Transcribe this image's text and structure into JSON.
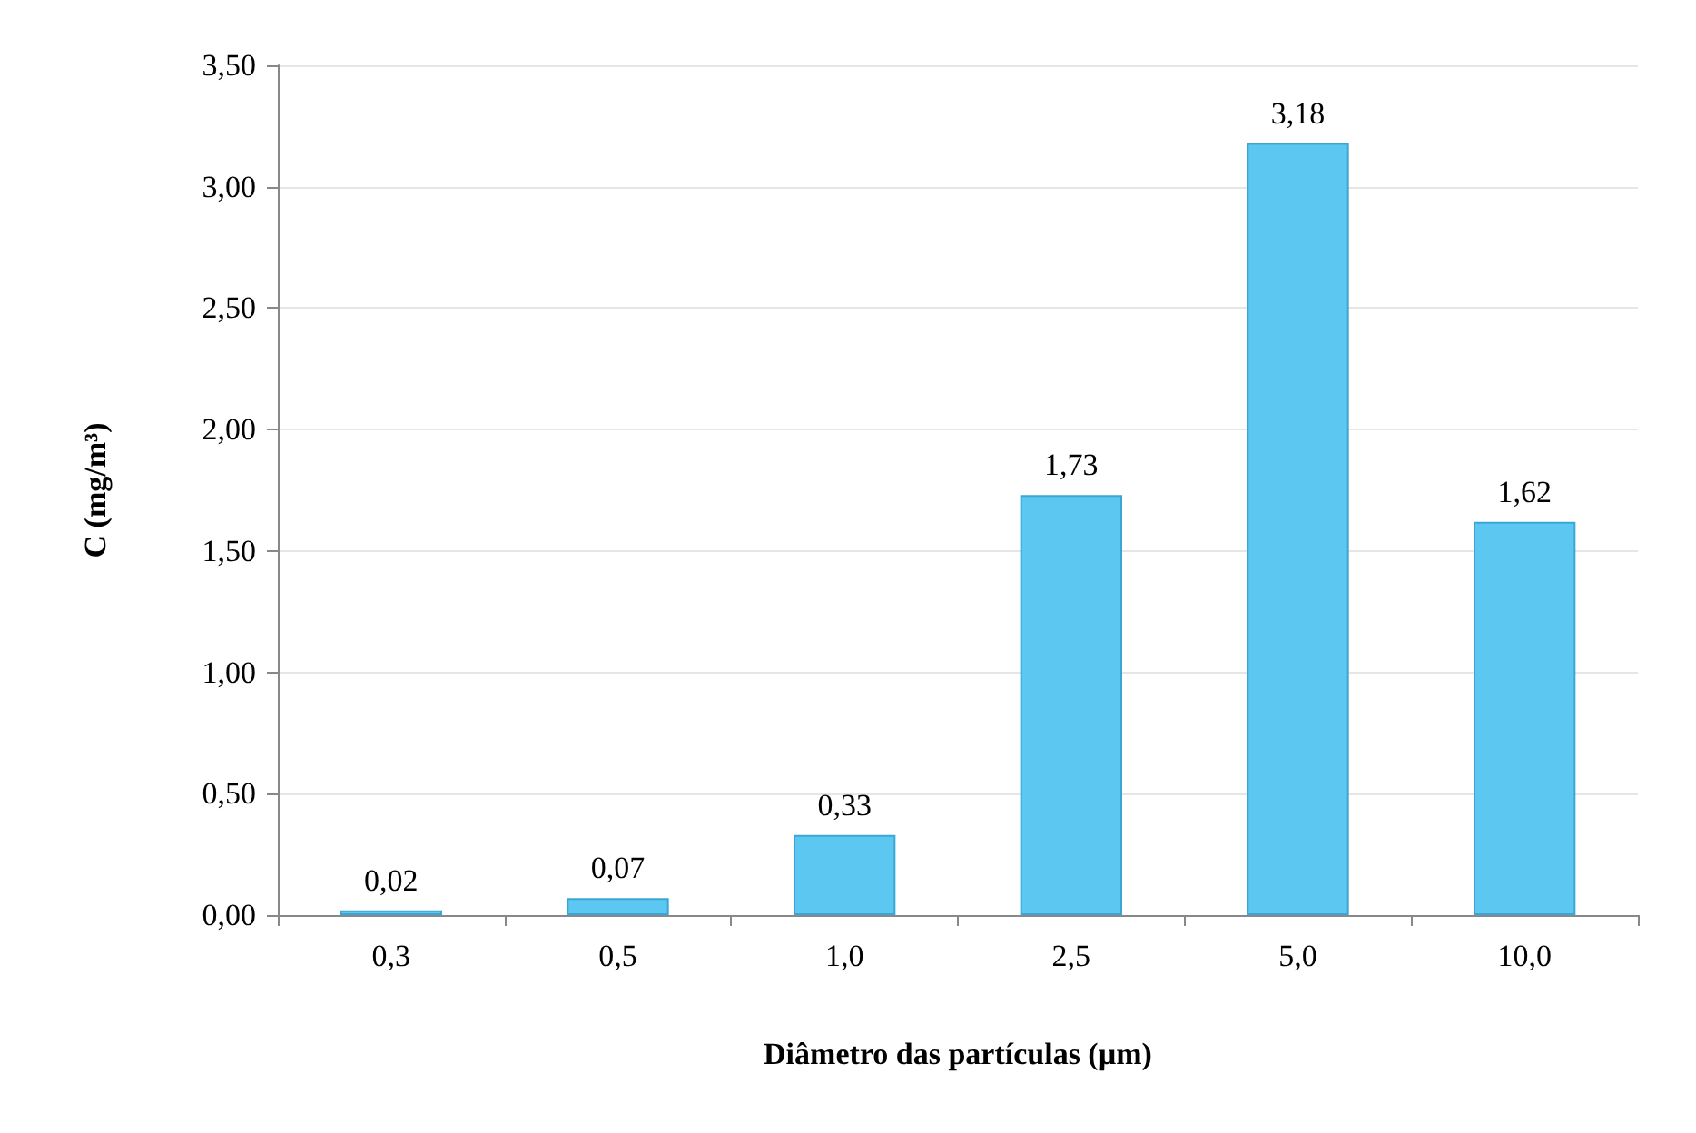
{
  "chart_data": {
    "type": "bar",
    "xlabel": "Diâmetro das partículas (µm)",
    "ylabel": "C (mg/m³)",
    "categories": [
      "0,3",
      "0,5",
      "1,0",
      "2,5",
      "5,0",
      "10,0"
    ],
    "values": [
      0.02,
      0.07,
      0.33,
      1.73,
      3.18,
      1.62
    ],
    "value_labels": [
      "0,02",
      "0,07",
      "0,33",
      "1,73",
      "3,18",
      "1,62"
    ],
    "color": "#5cc8f2",
    "ylim": [
      0,
      3.5
    ],
    "yticks": [
      {
        "value": 0,
        "label": "0,00"
      },
      {
        "value": 0.5,
        "label": "0,50"
      },
      {
        "value": 1,
        "label": "1,00"
      },
      {
        "value": 1.5,
        "label": "1,50"
      },
      {
        "value": 2,
        "label": "2,00"
      },
      {
        "value": 2.5,
        "label": "2,50"
      },
      {
        "value": 3,
        "label": "3,00"
      },
      {
        "value": 3.5,
        "label": "3,50"
      }
    ],
    "grid": "y"
  }
}
